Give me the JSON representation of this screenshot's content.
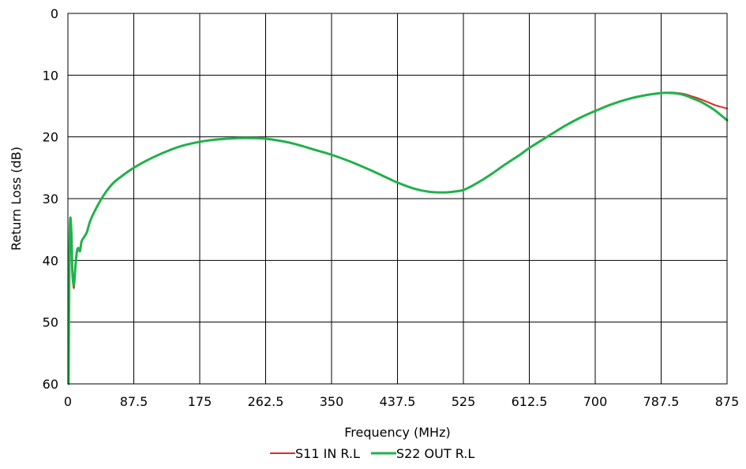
{
  "chart_data": {
    "type": "line",
    "title": "",
    "xlabel": "Frequency (MHz)",
    "ylabel": "Return Loss (dB)",
    "xlim": [
      0,
      875
    ],
    "ylim": [
      0,
      60
    ],
    "y_inverted": true,
    "grid": true,
    "legend_position": "bottom",
    "x_ticks": [
      "0",
      "87.5",
      "175",
      "262.5",
      "350",
      "437.5",
      "525",
      "612.5",
      "700",
      "787.5",
      "875"
    ],
    "y_ticks": [
      "0",
      "10",
      "20",
      "30",
      "40",
      "50",
      "60"
    ],
    "series": [
      {
        "name": "S11 IN R.L",
        "color": "#e8252b",
        "x": [
          1,
          2,
          3,
          4,
          5,
          6,
          8,
          10,
          12,
          14,
          16,
          18,
          20,
          25,
          30,
          40,
          50,
          60,
          70,
          87.5,
          110,
          130,
          150,
          175,
          200,
          225,
          250,
          262.5,
          280,
          300,
          325,
          350,
          375,
          400,
          425,
          437.5,
          460,
          480,
          500,
          510,
          525,
          540,
          560,
          580,
          600,
          612.5,
          640,
          660,
          680,
          700,
          720,
          740,
          760,
          787.5,
          800,
          810,
          820,
          830,
          840,
          850,
          860,
          875
        ],
        "values": [
          60,
          40,
          33.5,
          34,
          37,
          42,
          44.5,
          41,
          38.5,
          38,
          38.5,
          37,
          36.5,
          35.5,
          33.5,
          31,
          29,
          27.5,
          26.5,
          25,
          23.5,
          22.4,
          21.5,
          20.8,
          20.4,
          20.2,
          20.2,
          20.3,
          20.6,
          21.1,
          22,
          22.9,
          24,
          25.3,
          26.7,
          27.4,
          28.4,
          28.9,
          29,
          28.9,
          28.6,
          27.7,
          26.2,
          24.5,
          22.9,
          21.8,
          19.7,
          18.2,
          16.9,
          15.8,
          14.8,
          14,
          13.4,
          12.9,
          12.8,
          12.9,
          13.1,
          13.5,
          13.9,
          14.4,
          14.9,
          15.4
        ]
      },
      {
        "name": "S22 OUT R.L",
        "color": "#21b14a",
        "x": [
          1,
          2,
          3,
          4,
          5,
          6,
          8,
          10,
          12,
          14,
          16,
          18,
          20,
          25,
          30,
          40,
          50,
          60,
          70,
          87.5,
          110,
          130,
          150,
          175,
          200,
          225,
          250,
          262.5,
          280,
          300,
          325,
          350,
          375,
          400,
          425,
          437.5,
          460,
          480,
          500,
          510,
          525,
          540,
          560,
          580,
          600,
          612.5,
          640,
          660,
          680,
          700,
          720,
          740,
          760,
          787.5,
          800,
          810,
          820,
          830,
          840,
          850,
          860,
          875
        ],
        "values": [
          60,
          40,
          33.5,
          34,
          37,
          42,
          44,
          41,
          38.5,
          38,
          38.5,
          37,
          36.5,
          35.5,
          33.5,
          31,
          29,
          27.5,
          26.5,
          25,
          23.5,
          22.4,
          21.5,
          20.8,
          20.4,
          20.2,
          20.2,
          20.3,
          20.6,
          21.1,
          22,
          22.9,
          24,
          25.3,
          26.7,
          27.4,
          28.4,
          28.9,
          29,
          28.9,
          28.6,
          27.7,
          26.2,
          24.5,
          22.9,
          21.8,
          19.7,
          18.2,
          16.9,
          15.8,
          14.8,
          14,
          13.4,
          12.9,
          12.9,
          13,
          13.3,
          13.8,
          14.3,
          15,
          15.8,
          17.3
        ]
      }
    ]
  }
}
